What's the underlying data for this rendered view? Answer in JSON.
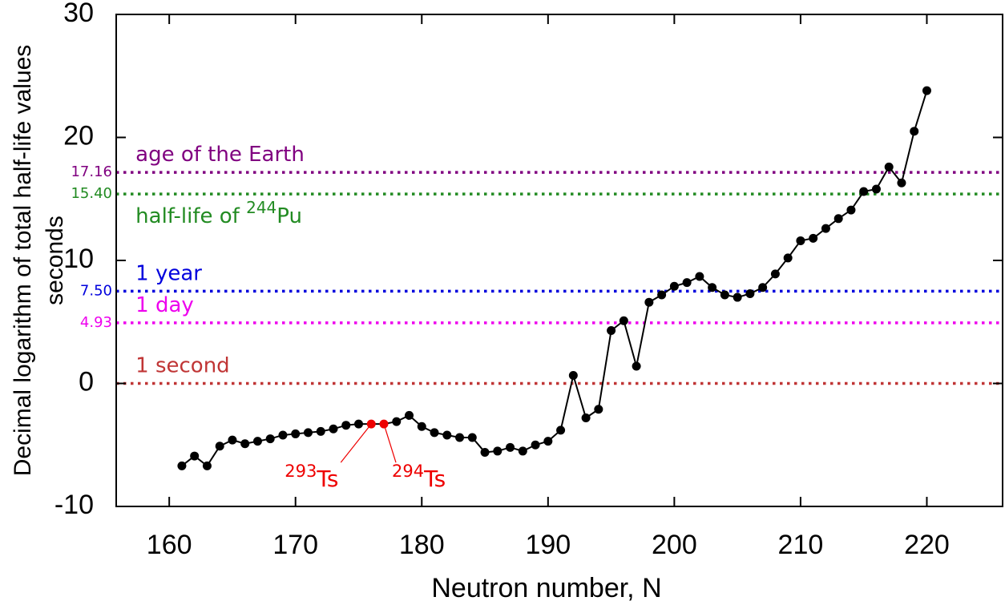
{
  "chart_data": {
    "type": "line",
    "x_label": "Neutron number, N",
    "y_label": [
      "Decimal logarithm of total half-life values",
      "seconds"
    ],
    "x": [
      161,
      162,
      163,
      164,
      165,
      166,
      167,
      168,
      169,
      170,
      171,
      172,
      173,
      174,
      175,
      176,
      177,
      178,
      179,
      180,
      181,
      182,
      183,
      184,
      185,
      186,
      187,
      188,
      189,
      190,
      191,
      192,
      193,
      194,
      195,
      196,
      197,
      198,
      199,
      200,
      201,
      202,
      203,
      204,
      205,
      206,
      207,
      208,
      209,
      210,
      211,
      212,
      213,
      214,
      215,
      216,
      217,
      218,
      219,
      220
    ],
    "values": [
      -6.7,
      -5.9,
      -6.7,
      -5.1,
      -4.6,
      -4.9,
      -4.7,
      -4.5,
      -4.2,
      -4.1,
      -4.0,
      -3.9,
      -3.7,
      -3.4,
      -3.3,
      -3.3,
      -3.3,
      -3.1,
      -2.6,
      -3.5,
      -4.0,
      -4.2,
      -4.4,
      -4.4,
      -5.6,
      -5.5,
      -5.2,
      -5.5,
      -5.0,
      -4.7,
      -3.8,
      0.65,
      -2.8,
      -2.1,
      4.3,
      5.1,
      1.4,
      6.6,
      7.2,
      7.9,
      8.2,
      8.7,
      7.8,
      7.2,
      7.0,
      7.3,
      7.8,
      8.9,
      10.2,
      11.6,
      11.8,
      12.6,
      13.4,
      14.1,
      15.6,
      15.8,
      17.6,
      16.3,
      20.5,
      23.8
    ],
    "color": "#000000",
    "highlight_color": "#ee0000",
    "xlim": [
      155.8,
      226
    ],
    "ylim": [
      -10,
      30
    ],
    "xticks": [
      160,
      170,
      180,
      190,
      200,
      210,
      220
    ],
    "yticks": [
      -10,
      0,
      10,
      20,
      30
    ],
    "hlines": [
      {
        "value": 17.16,
        "value_label": "17.16",
        "text": "age of the Earth",
        "color": "#800080",
        "text_side": "above"
      },
      {
        "value": 15.4,
        "value_label": "15.40",
        "text": "half-life of ",
        "superscript": "244",
        "text_after": "Pu",
        "color": "#228b22",
        "text_side": "below"
      },
      {
        "value": 7.5,
        "value_label": "7.50",
        "text": "1 year",
        "color": "#0000dd",
        "text_side": "above"
      },
      {
        "value": 4.93,
        "value_label": "4.93",
        "text": "1 day",
        "color": "#ee00ee",
        "text_side": "above"
      },
      {
        "value": 0,
        "text": "1 second",
        "color": "#c03535",
        "text_side": "above"
      }
    ],
    "annotations": [
      {
        "x": 176,
        "superscript": "293",
        "text": "Ts"
      },
      {
        "x": 177,
        "superscript": "294",
        "text": "Ts"
      }
    ]
  }
}
